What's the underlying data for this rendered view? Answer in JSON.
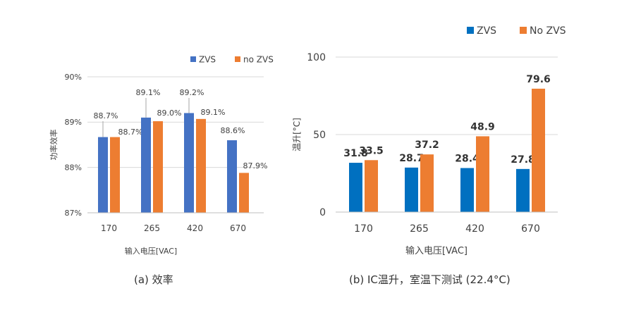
{
  "chart_data": [
    {
      "type": "bar",
      "title": "",
      "caption": "(a) 效率",
      "categories": [
        "170",
        "265",
        "420",
        "670"
      ],
      "series": [
        {
          "name": "ZVS",
          "color": "#4472c4",
          "values": [
            88.67,
            89.1,
            89.2,
            88.6
          ],
          "labels": [
            "88.7%",
            "89.1%",
            "89.2%",
            "88.6%"
          ]
        },
        {
          "name": "no ZVS",
          "color": "#ed7d31",
          "values": [
            88.67,
            89.02,
            89.07,
            87.88
          ],
          "labels": [
            "88.7%",
            "89.0%",
            "89.1%",
            "87.9%"
          ]
        }
      ],
      "xlabel": "输入电压[VAC]",
      "ylabel": "功率效率",
      "ylim": [
        87,
        90
      ],
      "yticks": [
        87,
        88,
        89,
        90
      ],
      "ytick_labels": [
        "87%",
        "88%",
        "89%",
        "90%"
      ],
      "grid": true,
      "legend_position": "top-right"
    },
    {
      "type": "bar",
      "title": "",
      "caption": "(b) IC温升，室温下测试 (22.4°C)",
      "categories": [
        "170",
        "265",
        "420",
        "670"
      ],
      "series": [
        {
          "name": "ZVS",
          "color": "#0070c0",
          "values": [
            31.8,
            28.7,
            28.4,
            27.8
          ],
          "labels": [
            "31.8",
            "28.7",
            "28.4",
            "27.8"
          ]
        },
        {
          "name": "No ZVS",
          "color": "#ed7d31",
          "values": [
            33.5,
            37.2,
            48.9,
            79.6
          ],
          "labels": [
            "33.5",
            "37.2",
            "48.9",
            "79.6"
          ]
        }
      ],
      "xlabel": "输入电压[VAC]",
      "ylabel": "温升[°C]",
      "ylim": [
        0,
        100
      ],
      "yticks": [
        0,
        50,
        100
      ],
      "ytick_labels": [
        "0",
        "50",
        "100"
      ],
      "grid": true,
      "legend_position": "top-right"
    }
  ]
}
